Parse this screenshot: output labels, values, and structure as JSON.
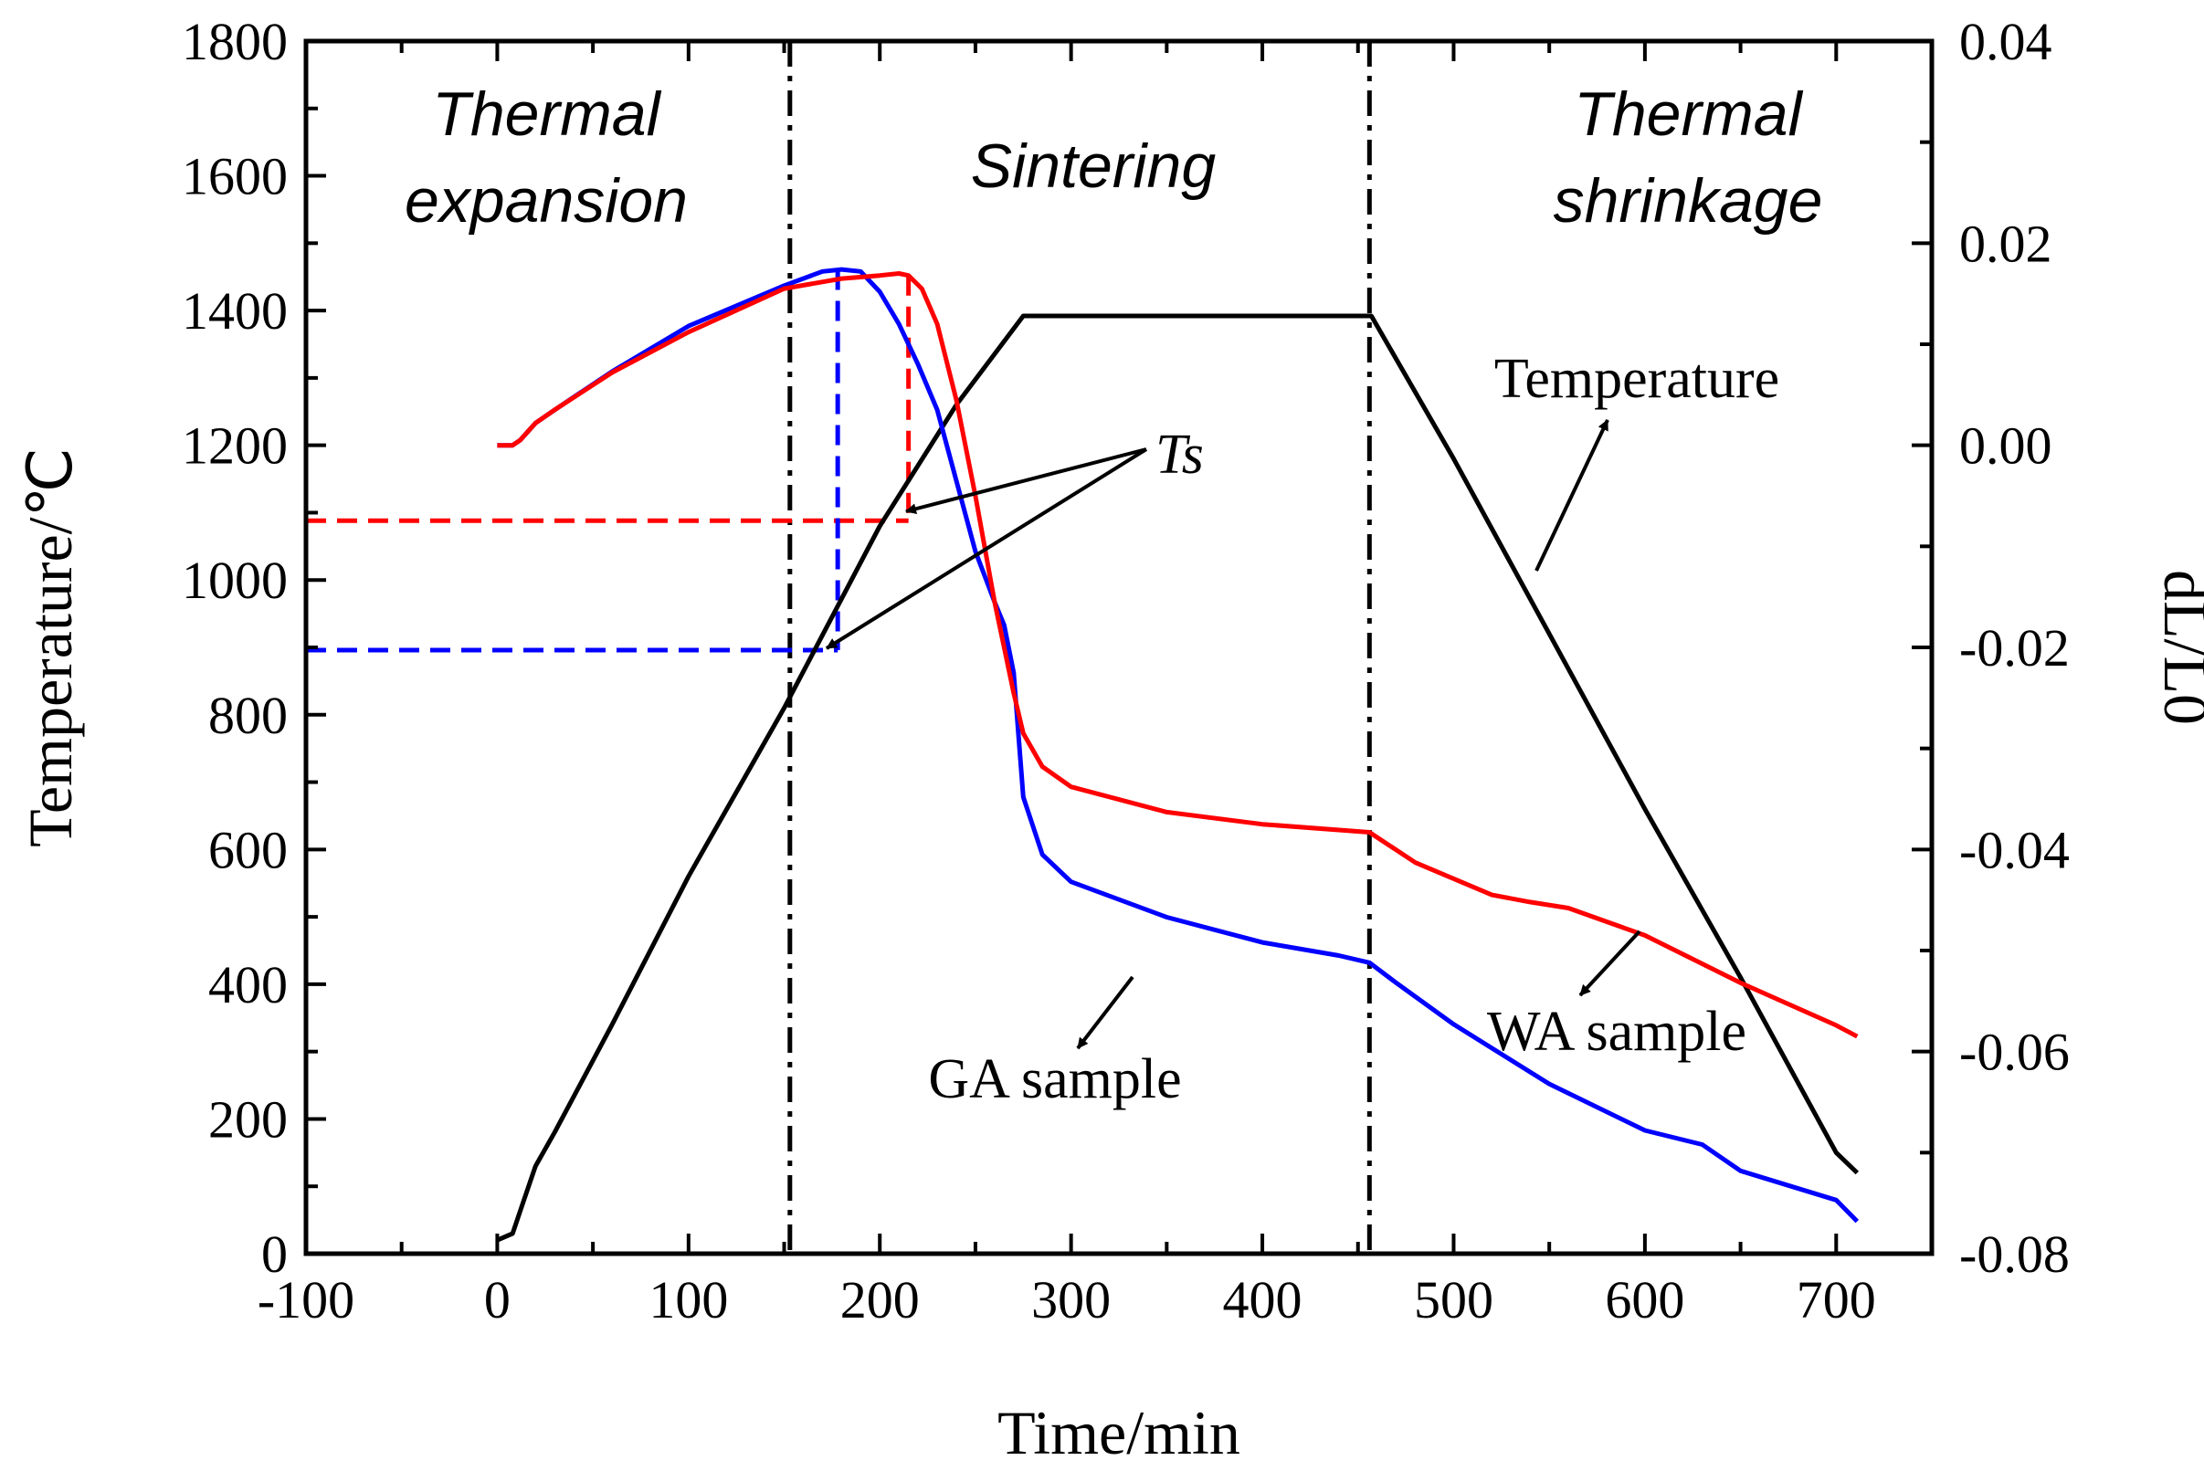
{
  "chart_data": {
    "type": "line",
    "xlabel": "Time/min",
    "ylabel_left": "Temperature/℃",
    "ylabel_right": "dL/L0",
    "xlim": [
      -100,
      750
    ],
    "ylim_left": [
      0,
      1800
    ],
    "ylim_right": [
      -0.08,
      0.04
    ],
    "x_ticks": [
      "-100",
      "0",
      "100",
      "200",
      "300",
      "400",
      "500",
      "600",
      "700"
    ],
    "y_left_ticks": [
      "0",
      "200",
      "400",
      "600",
      "800",
      "1000",
      "1200",
      "1400",
      "1600",
      "1800"
    ],
    "y_right_ticks": [
      "-0.08",
      "-0.06",
      "-0.04",
      "-0.02",
      "0.00",
      "0.02",
      "0.04"
    ],
    "regions": [
      {
        "label_lines": [
          "Thermal",
          "expansion"
        ]
      },
      {
        "label_lines": [
          "Sintering"
        ]
      },
      {
        "label_lines": [
          "Thermal",
          "shrinkage"
        ]
      }
    ],
    "boundaries_x": [
      153,
      456
    ],
    "series": [
      {
        "name": "Temperature",
        "axis": "left",
        "color": "#000000",
        "x": [
          0,
          8,
          14,
          20,
          30,
          60,
          100,
          150,
          200,
          240,
          275,
          300,
          350,
          400,
          457,
          500,
          550,
          600,
          650,
          700,
          711
        ],
        "y": [
          20,
          30,
          80,
          130,
          180,
          340,
          560,
          810,
          1080,
          1260,
          1392,
          1392,
          1392,
          1392,
          1392,
          1180,
          920,
          660,
          410,
          150,
          120
        ]
      },
      {
        "name": "GA sample",
        "axis": "right",
        "color": "#0000ff",
        "x": [
          0,
          8,
          12,
          20,
          30,
          60,
          100,
          150,
          170,
          180,
          190,
          200,
          210,
          220,
          230,
          240,
          250,
          260,
          265,
          270,
          275,
          285,
          300,
          350,
          400,
          440,
          456,
          470,
          500,
          550,
          600,
          630,
          650,
          700,
          711
        ],
        "y": [
          0.0,
          0.0,
          0.0005,
          0.0022,
          0.0035,
          0.0073,
          0.0118,
          0.0158,
          0.0172,
          0.0174,
          0.0172,
          0.0152,
          0.012,
          0.008,
          0.0035,
          -0.0035,
          -0.0105,
          -0.0155,
          -0.0178,
          -0.0225,
          -0.0348,
          -0.0405,
          -0.0432,
          -0.0467,
          -0.0492,
          -0.0505,
          -0.0512,
          -0.0532,
          -0.0573,
          -0.0632,
          -0.0678,
          -0.0692,
          -0.0718,
          -0.0747,
          -0.0768
        ]
      },
      {
        "name": "WA sample",
        "axis": "right",
        "color": "#ff0000",
        "x": [
          0,
          8,
          12,
          20,
          30,
          60,
          100,
          150,
          180,
          200,
          210,
          215,
          222,
          230,
          240,
          250,
          260,
          270,
          275,
          285,
          300,
          350,
          400,
          456,
          480,
          520,
          540,
          560,
          600,
          650,
          700,
          711
        ],
        "y": [
          0.0,
          0.0,
          0.0005,
          0.0022,
          0.0035,
          0.0072,
          0.0112,
          0.0155,
          0.0165,
          0.0168,
          0.017,
          0.0168,
          0.0155,
          0.012,
          0.0045,
          -0.005,
          -0.0155,
          -0.0245,
          -0.0285,
          -0.0318,
          -0.0338,
          -0.0363,
          -0.0375,
          -0.0383,
          -0.0413,
          -0.0445,
          -0.0452,
          -0.0458,
          -0.0485,
          -0.0532,
          -0.0574,
          -0.0585
        ]
      }
    ],
    "guides": [
      {
        "series": "WA sample",
        "time": 215,
        "temperature": 1088
      },
      {
        "series": "GA sample",
        "time": 178,
        "temperature": 896
      }
    ],
    "annotations": {
      "ts": "Ts",
      "temperature": "Temperature",
      "ga": "GA sample",
      "wa": "WA sample"
    }
  }
}
